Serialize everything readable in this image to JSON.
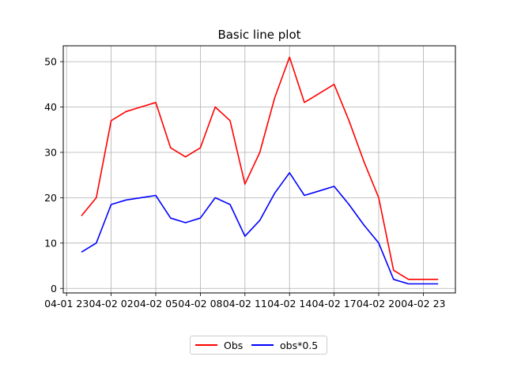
{
  "chart_data": {
    "type": "line",
    "title": "Basic line plot",
    "xlabel": "",
    "ylabel": "",
    "x": [
      "04-02 00",
      "04-02 01",
      "04-02 02",
      "04-02 03",
      "04-02 04",
      "04-02 05",
      "04-02 06",
      "04-02 07",
      "04-02 08",
      "04-02 09",
      "04-02 10",
      "04-02 11",
      "04-02 12",
      "04-02 13",
      "04-02 14",
      "04-02 15",
      "04-02 16",
      "04-02 17",
      "04-02 18",
      "04-02 19",
      "04-02 20",
      "04-02 21",
      "04-02 22",
      "04-02 23",
      "04-03 00"
    ],
    "series": [
      {
        "name": "Obs",
        "color": "#ff0000",
        "values": [
          16,
          20,
          37,
          39,
          40,
          41,
          31,
          29,
          31,
          40,
          37,
          23,
          30,
          42,
          51,
          41,
          43,
          45,
          37,
          28,
          20,
          4,
          2,
          2,
          2
        ]
      },
      {
        "name": "obs*0.5",
        "color": "#0000ff",
        "values": [
          8,
          10,
          18.5,
          19.5,
          20,
          20.5,
          15.5,
          14.5,
          15.5,
          20,
          18.5,
          11.5,
          15,
          21,
          25.5,
          20.5,
          21.5,
          22.5,
          18.5,
          14,
          10,
          2,
          1,
          1,
          1
        ]
      }
    ],
    "xtick_labels": [
      "04-01 23",
      "04-02 02",
      "04-02 05",
      "04-02 08",
      "04-02 11",
      "04-02 14",
      "04-02 17",
      "04-02 20",
      "04-02 23"
    ],
    "yticks": [
      0,
      10,
      20,
      30,
      40,
      50
    ],
    "ylim": [
      -1,
      53.5
    ],
    "grid": true,
    "legend_position": "bottom-center"
  }
}
